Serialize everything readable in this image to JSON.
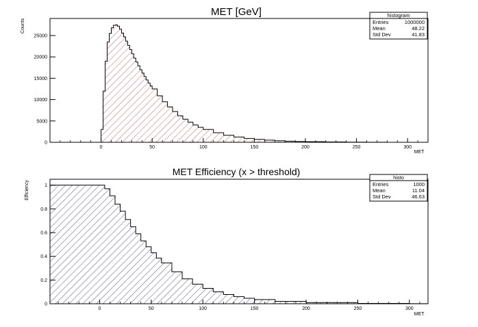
{
  "chart_data": [
    {
      "type": "histogram",
      "title": "MET [GeV]",
      "xlabel": "MET",
      "ylabel": "Counts",
      "xlim": [
        -50,
        320
      ],
      "ylim": [
        0,
        29000
      ],
      "xticks": [
        0,
        50,
        100,
        150,
        200,
        250,
        300
      ],
      "yticks": [
        0,
        5000,
        10000,
        15000,
        20000,
        25000
      ],
      "fill": "hatched",
      "line_color": "#000000",
      "hatch_color": "#c8504f",
      "x": [
        0,
        2,
        4,
        6,
        8,
        10,
        12,
        14,
        16,
        18,
        20,
        22,
        24,
        26,
        28,
        30,
        32,
        34,
        36,
        38,
        40,
        42,
        44,
        46,
        48,
        50,
        55,
        60,
        65,
        70,
        75,
        80,
        85,
        90,
        95,
        100,
        110,
        120,
        130,
        140,
        150,
        160,
        170,
        180,
        190,
        200,
        220,
        240,
        260,
        280,
        300
      ],
      "values": [
        3000,
        12000,
        19000,
        23500,
        25500,
        26800,
        27400,
        27500,
        27200,
        26500,
        25600,
        24700,
        23700,
        22700,
        21700,
        20700,
        19700,
        18800,
        17900,
        17000,
        16200,
        15400,
        14600,
        13900,
        13200,
        12500,
        10900,
        9500,
        8300,
        7200,
        6200,
        5400,
        4700,
        4050,
        3500,
        3000,
        2250,
        1650,
        1250,
        900,
        680,
        500,
        370,
        270,
        200,
        150,
        80,
        40,
        20,
        8,
        0
      ],
      "stats": {
        "title": "histogram",
        "rows": [
          {
            "label": "Entries",
            "value": "1000000"
          },
          {
            "label": "Mean",
            "value": "48.22"
          },
          {
            "label": "Std Dev",
            "value": "41.83"
          }
        ]
      }
    },
    {
      "type": "histogram",
      "title": "MET Efficiency (x > threshold)",
      "xlabel": "MET",
      "ylabel": "Efficiency",
      "xlim": [
        -48,
        318
      ],
      "ylim": [
        0,
        1.05
      ],
      "xticks": [
        0,
        50,
        100,
        150,
        200,
        250,
        300
      ],
      "yticks": [
        0,
        0.2,
        0.4,
        0.6,
        0.8,
        1
      ],
      "fill": "hatched",
      "line_color": "#000000",
      "hatch_color": "#3b3b8f",
      "x": [
        -48,
        -20,
        0,
        5,
        10,
        15,
        20,
        25,
        30,
        35,
        40,
        45,
        50,
        55,
        60,
        70,
        80,
        90,
        100,
        110,
        120,
        130,
        140,
        150,
        170,
        200,
        250,
        300,
        318
      ],
      "values": [
        1,
        1,
        1,
        0.97,
        0.91,
        0.84,
        0.78,
        0.71,
        0.65,
        0.59,
        0.53,
        0.48,
        0.43,
        0.385,
        0.345,
        0.27,
        0.21,
        0.165,
        0.13,
        0.1,
        0.078,
        0.06,
        0.046,
        0.035,
        0.02,
        0.01,
        0.003,
        0.001,
        0
      ],
      "stats": {
        "title": "histo",
        "rows": [
          {
            "label": "Entries",
            "value": "1000"
          },
          {
            "label": "Mean",
            "value": "11.04"
          },
          {
            "label": "Std Dev",
            "value": "46.63"
          }
        ]
      }
    }
  ]
}
